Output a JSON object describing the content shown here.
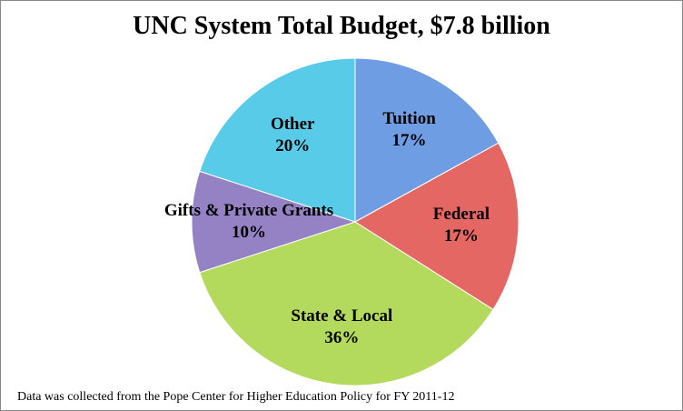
{
  "chart_data": {
    "type": "pie",
    "title": "UNC System Total Budget, $7.8 billion",
    "categories": [
      "Tuition",
      "Federal",
      "State & Local",
      "Gifts & Private Grants",
      "Other"
    ],
    "values": [
      17,
      17,
      36,
      10,
      20
    ],
    "value_labels": [
      "17%",
      "17%",
      "36%",
      "10%",
      "20%"
    ],
    "colors": [
      "#6f9de3",
      "#e56763",
      "#b3da5c",
      "#9582c4",
      "#58cbe8"
    ],
    "footnote": "Data was collected from the Pope Center for Higher Education Policy for FY 2011-12"
  }
}
